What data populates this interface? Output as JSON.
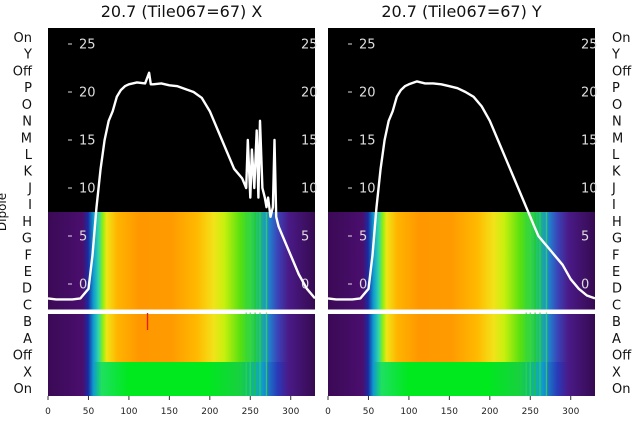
{
  "chart_data": [
    {
      "type": "line",
      "title": "20.7 (Tile067=67) X",
      "ylabel": "Dipole",
      "xlim": [
        0,
        330
      ],
      "ylim": [
        -3,
        28
      ],
      "x_ticks": [
        0,
        50,
        100,
        150,
        200,
        250,
        300
      ],
      "y_ticks": [
        0,
        5,
        10,
        15,
        20,
        25
      ],
      "row_labels": [
        "On",
        "Y",
        "Off",
        "P",
        "O",
        "N",
        "M",
        "L",
        "K",
        "J",
        "I",
        "H",
        "G",
        "F",
        "E",
        "D",
        "C",
        "B",
        "A",
        "Off",
        "X",
        "On"
      ],
      "series": [
        {
          "x": [
            0,
            10,
            20,
            30,
            40,
            50,
            55,
            60,
            65,
            70,
            75,
            80,
            85,
            90,
            95,
            100,
            110,
            120,
            125,
            127,
            130,
            140,
            150,
            160,
            170,
            180,
            190,
            200,
            210,
            220,
            230,
            240,
            245,
            247,
            250,
            252,
            255,
            258,
            260,
            262,
            265,
            268,
            270,
            272,
            275,
            278,
            280,
            282,
            285,
            290,
            300,
            310,
            320,
            330
          ],
          "y": [
            -1.5,
            -1.6,
            -1.6,
            -1.6,
            -1.5,
            -0.5,
            3,
            8,
            12,
            15,
            17,
            18,
            19.5,
            20.2,
            20.6,
            20.8,
            21,
            20.9,
            22,
            20.8,
            20.8,
            20.9,
            20.7,
            20.6,
            20.3,
            20,
            19.4,
            18,
            16,
            14,
            12,
            11,
            10,
            15,
            9,
            14,
            10,
            16,
            9,
            17,
            10,
            9,
            8,
            9,
            7,
            8,
            15,
            7,
            6,
            5,
            3,
            1,
            -0.5,
            -1.5
          ]
        }
      ]
    },
    {
      "type": "line",
      "title": "20.7 (Tile067=67) Y",
      "xlim": [
        0,
        330
      ],
      "ylim": [
        -3,
        28
      ],
      "x_ticks": [
        0,
        50,
        100,
        150,
        200,
        250,
        300
      ],
      "y_ticks": [
        0,
        5,
        10,
        15,
        20,
        25
      ],
      "row_labels": [
        "On",
        "Y",
        "Off",
        "P",
        "O",
        "N",
        "M",
        "L",
        "K",
        "J",
        "I",
        "H",
        "G",
        "F",
        "E",
        "D",
        "C",
        "B",
        "A",
        "Off",
        "X",
        "On"
      ],
      "series": [
        {
          "x": [
            0,
            10,
            20,
            30,
            40,
            50,
            55,
            60,
            65,
            70,
            75,
            80,
            85,
            90,
            95,
            100,
            110,
            120,
            130,
            140,
            150,
            160,
            170,
            180,
            190,
            200,
            210,
            220,
            230,
            240,
            245,
            250,
            255,
            260,
            265,
            270,
            275,
            280,
            290,
            300,
            310,
            320,
            330
          ],
          "y": [
            -1.5,
            -1.6,
            -1.6,
            -1.6,
            -1.5,
            -0.5,
            3,
            8,
            12,
            15,
            17,
            18,
            19.5,
            20.2,
            20.6,
            20.8,
            21.1,
            20.9,
            20.9,
            20.8,
            20.6,
            20.4,
            20,
            19.5,
            18.5,
            17,
            15,
            13,
            11,
            9,
            8,
            7,
            6,
            5,
            4.5,
            4,
            3.5,
            3,
            2,
            0.5,
            -0.5,
            -1.2,
            -1.5
          ]
        }
      ]
    }
  ]
}
